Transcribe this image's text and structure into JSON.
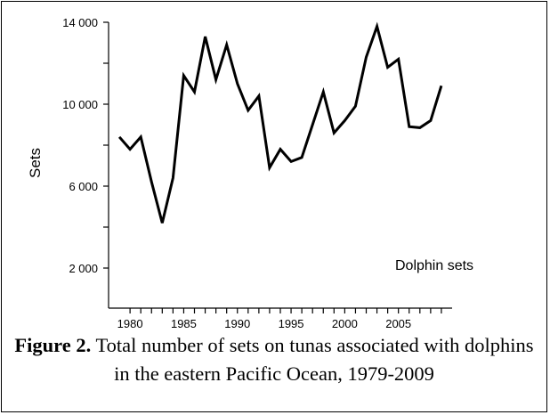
{
  "chart_data": {
    "type": "line",
    "ylabel": "Sets",
    "xlabel": "",
    "annotation": "Dolphin sets",
    "x": [
      1979,
      1980,
      1981,
      1982,
      1983,
      1984,
      1985,
      1986,
      1987,
      1988,
      1989,
      1990,
      1991,
      1992,
      1993,
      1994,
      1995,
      1996,
      1997,
      1998,
      1999,
      2000,
      2001,
      2002,
      2003,
      2004,
      2005,
      2006,
      2007,
      2008,
      2009
    ],
    "series": [
      {
        "values": [
          8400,
          7800,
          8400,
          6200,
          4200,
          6400,
          11400,
          10600,
          13300,
          11200,
          12900,
          11000,
          9700,
          10400,
          6900,
          7800,
          7200,
          7400,
          9000,
          10600,
          8600,
          9200,
          9900,
          12300,
          13800,
          11800,
          12200,
          8900,
          8850,
          9200,
          10900
        ]
      }
    ],
    "xlim": [
      1978,
      2010
    ],
    "ylim": [
      0,
      14000
    ],
    "x_ticks": [
      1980,
      1981,
      1982,
      1983,
      1984,
      1985,
      1986,
      1987,
      1988,
      1989,
      1990,
      1991,
      1992,
      1993,
      1994,
      1995,
      1996,
      1997,
      1998,
      1999,
      2000,
      2001,
      2002,
      2003,
      2004,
      2005,
      2006,
      2007,
      2008,
      2009
    ],
    "x_tick_labels": [
      {
        "value": 1980,
        "label": "1980"
      },
      {
        "value": 1985,
        "label": "1985"
      },
      {
        "value": 1990,
        "label": "1990"
      },
      {
        "value": 1995,
        "label": "1995"
      },
      {
        "value": 2000,
        "label": "2000"
      },
      {
        "value": 2005,
        "label": "2005"
      }
    ],
    "y_ticks": [
      {
        "value": 2000,
        "label": "2 000"
      },
      {
        "value": 4000,
        "label": ""
      },
      {
        "value": 6000,
        "label": "6 000"
      },
      {
        "value": 8000,
        "label": ""
      },
      {
        "value": 10000,
        "label": "10 000"
      },
      {
        "value": 12000,
        "label": ""
      },
      {
        "value": 14000,
        "label": "14 000"
      }
    ],
    "grid": false,
    "line_color": "#000000"
  },
  "caption": {
    "label": "Figure 2.",
    "text": " Total number of sets on tunas associated with dolphins in the eastern Pacific Ocean, 1979-2009"
  }
}
